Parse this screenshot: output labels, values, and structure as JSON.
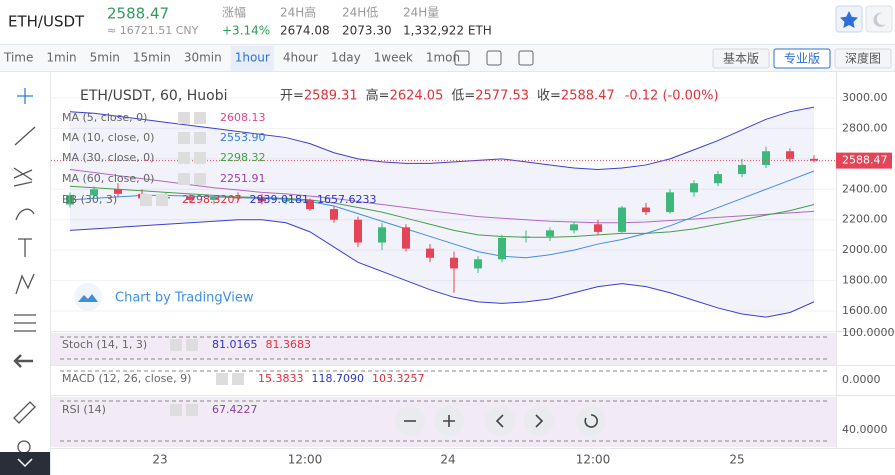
{
  "header": {
    "pair": "ETH/USDT",
    "price": "2588.47",
    "cny": "≈ 16721.51 CNY",
    "stats": [
      {
        "label": "涨幅",
        "value": "+3.14%"
      },
      {
        "label": "24H高",
        "value": "2674.08"
      },
      {
        "label": "24H低",
        "value": "2073.30"
      },
      {
        "label": "24H量",
        "value": "1,332,922 ETH"
      }
    ]
  },
  "toolbar": {
    "intervals": [
      "Time",
      "1min",
      "5min",
      "15min",
      "30min",
      "1hour",
      "4hour",
      "1day",
      "1week",
      "1mon"
    ],
    "active_interval": 5,
    "views": [
      "基本版",
      "专业版",
      "深度图"
    ],
    "active_view": 1
  },
  "legend": {
    "symbol": "ETH/USDT, 60, Huobi",
    "ohlc": [
      {
        "label": "开=",
        "value": "2589.31"
      },
      {
        "label": "高=",
        "value": "2624.05"
      },
      {
        "label": "低=",
        "value": "2577.53"
      },
      {
        "label": "收=",
        "value": "2588.47"
      }
    ],
    "change": "-0.12 (-0.00%)"
  },
  "studies": [
    {
      "name": "MA (5, close, 0)",
      "values": [
        {
          "text": "2608.13",
          "color": "#d9478c"
        }
      ]
    },
    {
      "name": "MA (10, close, 0)",
      "values": [
        {
          "text": "2553.90",
          "color": "#2f7fd8"
        }
      ]
    },
    {
      "name": "MA (30, close, 0)",
      "values": [
        {
          "text": "2298.32",
          "color": "#3ea33e"
        }
      ]
    },
    {
      "name": "MA (60, close, 0)",
      "values": [
        {
          "text": "2251.91",
          "color": "#9c3fa8"
        }
      ]
    },
    {
      "name": "BB (30, 3)",
      "values": [
        {
          "text": "2298.3207",
          "color": "#e0303a"
        },
        {
          "text": "2939.0181",
          "color": "#2d36c8"
        },
        {
          "text": "1657.6233",
          "color": "#2d36c8"
        }
      ]
    }
  ],
  "price_axis": {
    "ticks": [
      {
        "value": 3000,
        "label": "3000.00"
      },
      {
        "value": 2800,
        "label": "2800.00"
      },
      {
        "value": 2600,
        "label": "2600.00"
      },
      {
        "value": 2400,
        "label": "2400.00"
      },
      {
        "value": 2200,
        "label": "2200.00"
      },
      {
        "value": 2000,
        "label": "2000.00"
      },
      {
        "value": 1800,
        "label": "1800.00"
      },
      {
        "value": 1600,
        "label": "1600.00"
      }
    ],
    "last": {
      "value": 2588.47,
      "label": "2588.47"
    }
  },
  "time_axis": [
    "23",
    "12:00",
    "24",
    "12:00",
    "25"
  ],
  "watermark": "Chart by TradingView",
  "panes": [
    {
      "label": "Stoch (14, 1, 3)",
      "values": [
        {
          "text": "81.0165",
          "color": "#2d36c8"
        },
        {
          "text": "81.3683",
          "color": "#e0303a"
        }
      ],
      "axis": "100.0000"
    },
    {
      "label": "MACD (12, 26, close, 9)",
      "values": [
        {
          "text": "15.3833",
          "color": "#e0303a"
        },
        {
          "text": "118.7090",
          "color": "#2d36c8"
        },
        {
          "text": "103.3257",
          "color": "#e0303a"
        }
      ],
      "axis": "0.0000"
    },
    {
      "label": "RSI (14)",
      "values": [
        {
          "text": "67.4227",
          "color": "#8a3fa0"
        }
      ],
      "axis": "40.0000"
    }
  ],
  "chart": {
    "open": [
      2300,
      2360,
      2400,
      2370,
      2340,
      2350,
      2330,
      2350,
      2340,
      2320,
      2330,
      2270,
      2200,
      2050,
      2150,
      2010,
      1950,
      1880,
      1940,
      2080,
      2090,
      2130,
      2170,
      2120,
      2280,
      2250,
      2380,
      2440,
      2500,
      2560,
      2650,
      2600
    ],
    "high": [
      2380,
      2420,
      2440,
      2400,
      2380,
      2370,
      2360,
      2380,
      2370,
      2350,
      2340,
      2290,
      2220,
      2180,
      2170,
      2040,
      1990,
      1960,
      2100,
      2130,
      2150,
      2190,
      2200,
      2290,
      2310,
      2400,
      2460,
      2520,
      2600,
      2680,
      2670,
      2624
    ],
    "low": [
      2280,
      2340,
      2350,
      2320,
      2300,
      2310,
      2300,
      2320,
      2300,
      2300,
      2260,
      2180,
      2020,
      2000,
      1990,
      1920,
      1720,
      1850,
      1920,
      2050,
      2060,
      2110,
      2100,
      2110,
      2230,
      2240,
      2350,
      2420,
      2480,
      2540,
      2580,
      2577
    ],
    "close": [
      2360,
      2400,
      2370,
      2340,
      2350,
      2330,
      2350,
      2340,
      2320,
      2330,
      2270,
      2200,
      2050,
      2150,
      2010,
      1950,
      1880,
      1940,
      2080,
      2090,
      2130,
      2170,
      2120,
      2280,
      2250,
      2380,
      2440,
      2500,
      2560,
      2650,
      2600,
      2588
    ],
    "bb_upper": [
      2910,
      2900,
      2880,
      2860,
      2840,
      2820,
      2800,
      2780,
      2760,
      2740,
      2700,
      2640,
      2600,
      2580,
      2570,
      2570,
      2580,
      2590,
      2600,
      2580,
      2560,
      2540,
      2530,
      2540,
      2560,
      2600,
      2660,
      2720,
      2790,
      2860,
      2910,
      2940
    ],
    "bb_lower": [
      2130,
      2140,
      2150,
      2160,
      2170,
      2180,
      2190,
      2200,
      2200,
      2180,
      2120,
      2020,
      1920,
      1860,
      1800,
      1740,
      1690,
      1660,
      1650,
      1660,
      1680,
      1720,
      1760,
      1780,
      1760,
      1720,
      1670,
      1620,
      1580,
      1560,
      1590,
      1660
    ],
    "ma10": [
      2330,
      2340,
      2350,
      2360,
      2360,
      2355,
      2350,
      2345,
      2340,
      2335,
      2320,
      2290,
      2240,
      2190,
      2140,
      2090,
      2040,
      1990,
      1960,
      1950,
      1970,
      2000,
      2040,
      2070,
      2110,
      2160,
      2220,
      2280,
      2340,
      2400,
      2460,
      2520
    ],
    "ma30": [
      2420,
      2410,
      2400,
      2390,
      2380,
      2370,
      2360,
      2350,
      2345,
      2340,
      2330,
      2310,
      2280,
      2250,
      2210,
      2170,
      2130,
      2100,
      2090,
      2085,
      2085,
      2090,
      2100,
      2110,
      2110,
      2120,
      2140,
      2170,
      2200,
      2230,
      2260,
      2300
    ],
    "ma60": [
      2530,
      2510,
      2490,
      2470,
      2450,
      2430,
      2410,
      2395,
      2380,
      2370,
      2355,
      2340,
      2320,
      2300,
      2280,
      2260,
      2240,
      2220,
      2210,
      2200,
      2190,
      2185,
      2180,
      2180,
      2185,
      2195,
      2205,
      2215,
      2225,
      2235,
      2245,
      2255
    ]
  }
}
